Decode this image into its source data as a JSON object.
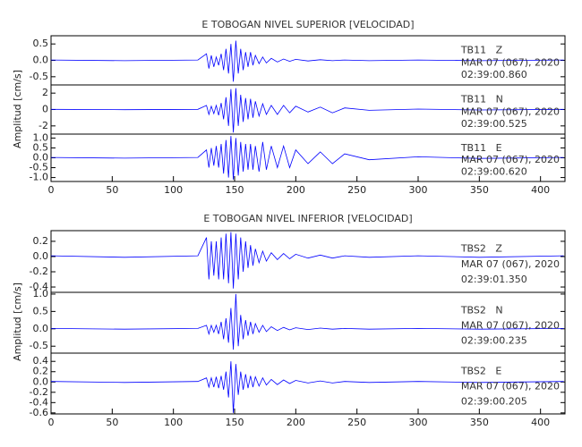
{
  "chart_data": [
    {
      "type": "line",
      "title": "E TOBOGAN NIVEL SUPERIOR [VELOCIDAD]",
      "y_label": "Amplitud [cm/s]",
      "xlim": [
        0,
        420
      ],
      "xticks": [
        0,
        50,
        100,
        150,
        200,
        250,
        300,
        350,
        400
      ],
      "x": [
        0,
        60,
        120,
        127,
        129,
        131,
        133,
        135,
        137,
        139,
        141,
        143,
        145,
        147,
        149,
        151,
        153,
        155,
        157,
        159,
        161,
        163,
        165,
        167,
        170,
        173,
        176,
        180,
        185,
        190,
        195,
        200,
        210,
        220,
        230,
        240,
        260,
        300,
        350,
        419
      ],
      "panels": [
        {
          "station": "TB11   Z",
          "date": "MAR 07 (067), 2020",
          "time": "02:39:00.860",
          "color": "#0000ff",
          "ylim": [
            -0.75,
            0.75
          ],
          "yticks": [
            0.5,
            {
              "value": 0,
              "label": "0.0"
            },
            -0.5
          ],
          "values": [
            0.01,
            -0.01,
            0.01,
            0.2,
            -0.25,
            0.15,
            -0.2,
            0.1,
            -0.15,
            0.2,
            -0.3,
            0.35,
            -0.4,
            0.5,
            -0.65,
            0.6,
            -0.4,
            0.35,
            -0.3,
            0.25,
            -0.2,
            0.25,
            -0.15,
            0.15,
            -0.1,
            0.1,
            -0.08,
            0.06,
            -0.05,
            0.04,
            -0.03,
            0.03,
            -0.02,
            0.02,
            -0.01,
            0.01,
            -0.01,
            0.01,
            -0.01,
            0.01
          ]
        },
        {
          "station": "TB11   N",
          "date": "MAR 07 (067), 2020",
          "time": "02:39:00.525",
          "color": "#0000ff",
          "ylim": [
            -3,
            3
          ],
          "yticks": [
            2,
            0,
            -2
          ],
          "values": [
            0.02,
            -0.02,
            0.02,
            0.5,
            -0.6,
            0.4,
            -0.5,
            0.5,
            -0.7,
            0.8,
            -1.2,
            1.5,
            -2,
            2.5,
            -2.8,
            2.6,
            -2,
            1.8,
            -1.5,
            1.4,
            -1.2,
            1.3,
            -1,
            1,
            -0.8,
            0.7,
            -0.6,
            0.5,
            -0.6,
            0.5,
            -0.4,
            0.4,
            -0.3,
            0.3,
            -0.4,
            0.2,
            -0.1,
            0.05,
            -0.05,
            0.02
          ]
        },
        {
          "station": "TB11   E",
          "date": "MAR 07 (067), 2020",
          "time": "02:39:00.620",
          "color": "#0000ff",
          "ylim": [
            -1.2,
            1.2
          ],
          "yticks": [
            {
              "value": 1,
              "label": "1.0"
            },
            0.5,
            {
              "value": 0,
              "label": "0.0"
            },
            -0.5,
            {
              "value": -1,
              "label": "-1.0"
            }
          ],
          "values": [
            0.02,
            -0.02,
            0.02,
            0.4,
            -0.5,
            0.5,
            -0.4,
            0.6,
            -0.5,
            0.7,
            -0.8,
            0.9,
            -1,
            1.1,
            -1.1,
            1,
            -0.9,
            0.8,
            -0.7,
            0.7,
            -0.6,
            0.7,
            -0.6,
            0.6,
            -0.7,
            0.8,
            -0.6,
            0.6,
            -0.5,
            0.6,
            -0.5,
            0.4,
            -0.3,
            0.3,
            -0.3,
            0.2,
            -0.1,
            0.05,
            -0.03,
            0.02
          ]
        }
      ]
    },
    {
      "type": "line",
      "title": "E TOBOGAN NIVEL INFERIOR [VELOCIDAD]",
      "y_label": "Amplitud [cm/s]",
      "xlim": [
        0,
        420
      ],
      "xticks": [
        0,
        50,
        100,
        150,
        200,
        250,
        300,
        350,
        400
      ],
      "x": [
        0,
        60,
        120,
        127,
        129,
        131,
        133,
        135,
        137,
        139,
        141,
        143,
        145,
        147,
        149,
        151,
        153,
        155,
        157,
        159,
        161,
        163,
        165,
        167,
        170,
        173,
        176,
        180,
        185,
        190,
        195,
        200,
        210,
        220,
        230,
        240,
        260,
        300,
        350,
        419
      ],
      "panels": [
        {
          "station": "TBS2   Z",
          "date": "MAR 07 (067), 2020",
          "time": "02:39:01.350",
          "color": "#0000ff",
          "ylim": [
            -0.47,
            0.34
          ],
          "yticks": [
            0.2,
            {
              "value": 0,
              "label": "0.0"
            },
            -0.2,
            -0.4
          ],
          "values": [
            0.01,
            -0.01,
            0.01,
            0.25,
            -0.3,
            0.2,
            -0.25,
            0.2,
            -0.3,
            0.25,
            -0.3,
            0.3,
            -0.35,
            0.32,
            -0.42,
            0.3,
            -0.3,
            0.25,
            -0.2,
            0.2,
            -0.15,
            0.15,
            -0.12,
            0.1,
            -0.08,
            0.07,
            -0.06,
            0.05,
            -0.04,
            0.04,
            -0.03,
            0.03,
            -0.02,
            0.02,
            -0.02,
            0.01,
            -0.01,
            0.01,
            -0.01,
            0.01
          ]
        },
        {
          "station": "TBS2   N",
          "date": "MAR 07 (067), 2020",
          "time": "02:39:00.235",
          "color": "#0000ff",
          "ylim": [
            -0.7,
            1.05
          ],
          "yticks": [
            {
              "value": 1,
              "label": "1.0"
            },
            0.5,
            {
              "value": 0,
              "label": "0.0"
            },
            -0.5
          ],
          "values": [
            0.01,
            -0.01,
            0.01,
            0.1,
            -0.15,
            0.1,
            -0.1,
            0.1,
            -0.15,
            0.2,
            -0.3,
            0.3,
            -0.4,
            0.6,
            -0.6,
            1.0,
            -0.5,
            0.4,
            -0.3,
            0.25,
            -0.2,
            0.2,
            -0.15,
            0.15,
            -0.1,
            0.1,
            -0.08,
            0.06,
            -0.05,
            0.04,
            -0.03,
            0.03,
            -0.02,
            0.02,
            -0.01,
            0.01,
            -0.01,
            0.01,
            -0.01,
            0.01
          ]
        },
        {
          "station": "TBS2   E",
          "date": "MAR 07 (067), 2020",
          "time": "02:39:00.205",
          "color": "#0000ff",
          "ylim": [
            -0.62,
            0.56
          ],
          "yticks": [
            0.4,
            0.2,
            {
              "value": 0,
              "label": "0.0"
            },
            -0.2,
            -0.4,
            -0.6
          ],
          "values": [
            0.01,
            -0.01,
            0.01,
            0.08,
            -0.1,
            0.08,
            -0.1,
            0.1,
            -0.12,
            0.12,
            -0.15,
            0.2,
            -0.3,
            0.4,
            -0.6,
            0.35,
            -0.25,
            0.2,
            -0.15,
            0.15,
            -0.12,
            0.12,
            -0.1,
            0.1,
            -0.08,
            0.08,
            -0.06,
            0.05,
            -0.05,
            0.04,
            -0.03,
            0.03,
            -0.02,
            0.02,
            -0.02,
            0.01,
            -0.01,
            0.01,
            -0.01,
            0.01
          ]
        }
      ]
    }
  ]
}
